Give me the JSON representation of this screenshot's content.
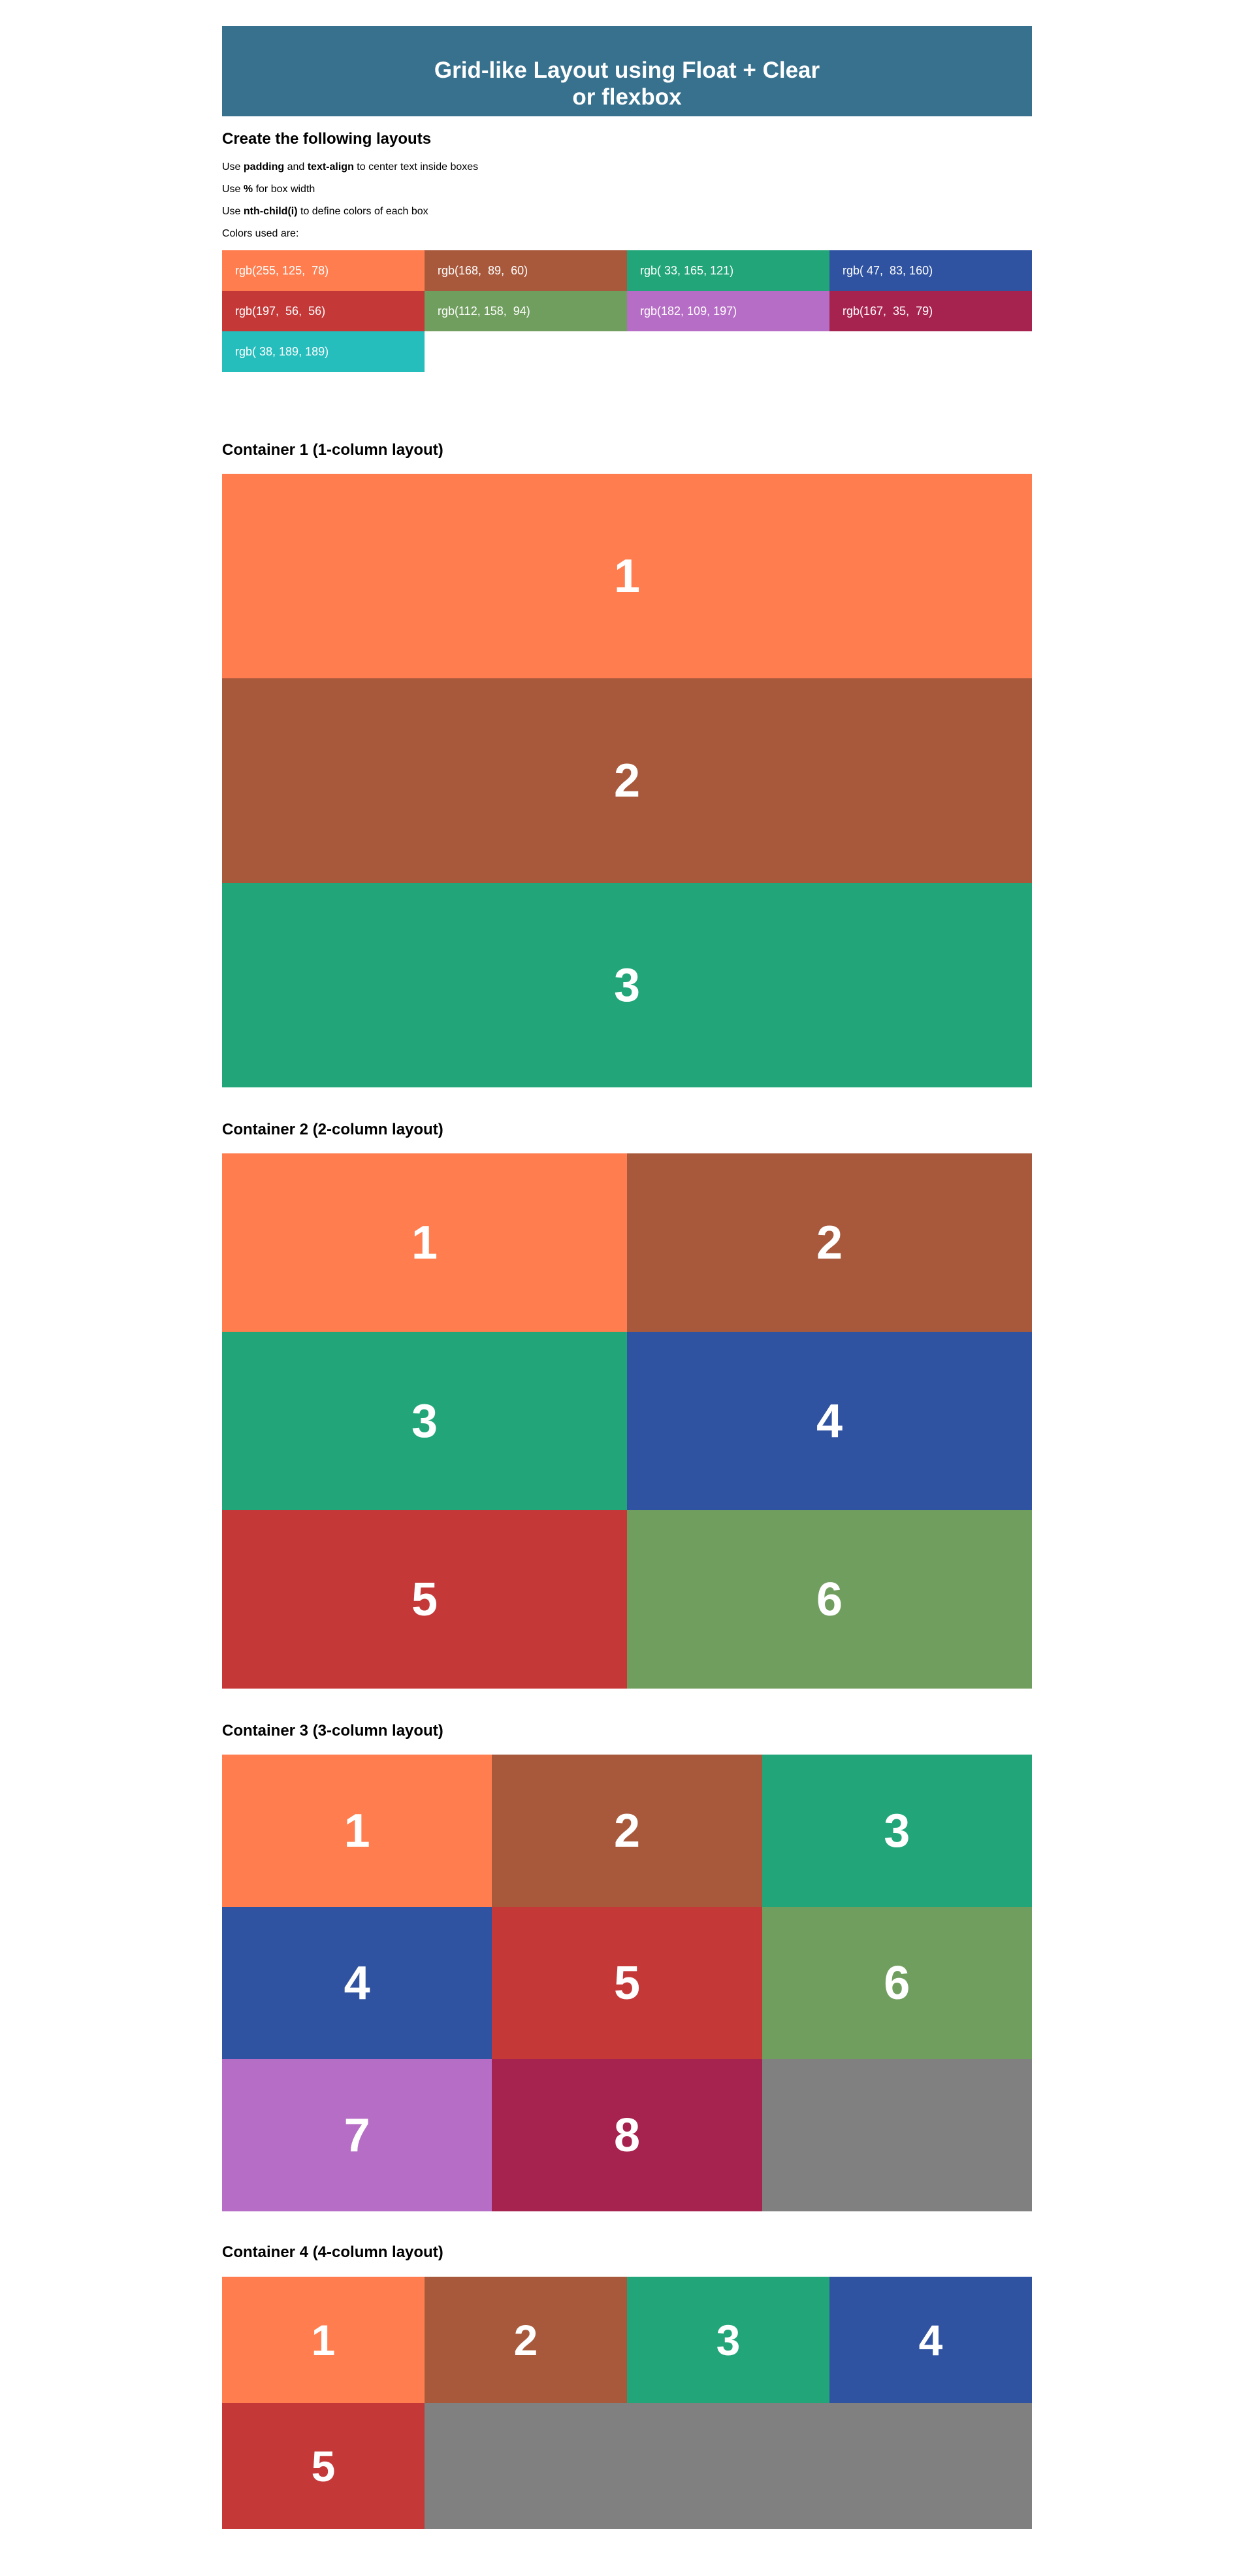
{
  "header": {
    "title_line1": "Grid-like Layout using Float + Clear",
    "title_line2": "or flexbox"
  },
  "intro": {
    "heading": "Create the following layouts",
    "line1": {
      "pre": "Use ",
      "bold1": "padding",
      "mid": " and ",
      "bold2": "text-align",
      "post": " to center text inside boxes"
    },
    "line2": {
      "pre": "Use ",
      "bold": "%",
      "post": " for box width"
    },
    "line3": {
      "pre": "Use ",
      "bold": "nth-child(i)",
      "post": " to define colors of each box"
    },
    "line4": "Colors used are:"
  },
  "palette": [
    {
      "label": "rgb(255, 125,  78)",
      "color": "#ff7d4e"
    },
    {
      "label": "rgb(168,  89,  60)",
      "color": "#a8593c"
    },
    {
      "label": "rgb( 33, 165, 121)",
      "color": "#21a579"
    },
    {
      "label": "rgb( 47,  83, 160)",
      "color": "#2f53a0"
    },
    {
      "label": "rgb(197,  56,  56)",
      "color": "#c53838"
    },
    {
      "label": "rgb(112, 158,  94)",
      "color": "#709e5e"
    },
    {
      "label": "rgb(182, 109, 197)",
      "color": "#b66dc5"
    },
    {
      "label": "rgb(167,  35,  79)",
      "color": "#a7234f"
    },
    {
      "label": "rgb( 38, 189, 189)",
      "color": "#26bdbd"
    }
  ],
  "containers": [
    {
      "title": "Container 1 (1-column layout)",
      "boxes": [
        "1",
        "2",
        "3"
      ]
    },
    {
      "title": "Container 2 (2-column layout)",
      "boxes": [
        "1",
        "2",
        "3",
        "4",
        "5",
        "6"
      ]
    },
    {
      "title": "Container 3 (3-column layout)",
      "boxes": [
        "1",
        "2",
        "3",
        "4",
        "5",
        "6",
        "7",
        "8"
      ]
    },
    {
      "title": "Container 4 (4-column layout)",
      "boxes": [
        "1",
        "2",
        "3",
        "4",
        "5"
      ]
    }
  ],
  "filler_color": "#808080"
}
